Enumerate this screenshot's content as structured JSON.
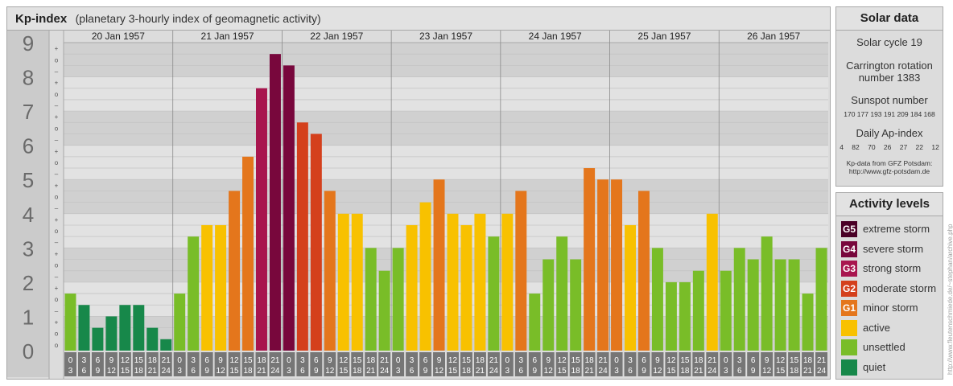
{
  "header": {
    "title": "Kp-index",
    "subtitle": "(planetary 3-hourly index of geomagnetic activity)"
  },
  "chart_data": {
    "type": "bar",
    "y_major_ticks": [
      "0",
      "1",
      "2",
      "3",
      "4",
      "5",
      "6",
      "7",
      "8",
      "9"
    ],
    "y_minor_marks": [
      "+",
      "o",
      "–"
    ],
    "ylim": [
      0,
      9
    ],
    "days": [
      "20 Jan 1957",
      "21 Jan 1957",
      "22 Jan 1957",
      "23 Jan 1957",
      "24 Jan 1957",
      "25 Jan 1957",
      "26 Jan 1957"
    ],
    "interval_starts": [
      "0",
      "3",
      "6",
      "9",
      "12",
      "15",
      "18",
      "21"
    ],
    "interval_ends": [
      "3",
      "6",
      "9",
      "12",
      "15",
      "18",
      "21",
      "24"
    ],
    "values": [
      1.667,
      1.333,
      0.667,
      1.0,
      1.333,
      1.333,
      0.667,
      0.333,
      1.667,
      3.333,
      3.667,
      3.667,
      4.667,
      5.667,
      7.667,
      8.667,
      8.333,
      6.667,
      6.333,
      4.667,
      4.0,
      4.0,
      3.0,
      2.333,
      3.0,
      3.667,
      4.333,
      5.0,
      4.0,
      3.667,
      4.0,
      3.333,
      4.0,
      4.667,
      1.667,
      2.667,
      3.333,
      2.667,
      5.333,
      5.0,
      5.0,
      3.667,
      4.667,
      3.0,
      2.0,
      2.0,
      2.333,
      4.0,
      2.333,
      3.0,
      2.667,
      3.333,
      2.667,
      2.667,
      1.667,
      3.0
    ],
    "colors": {
      "quiet": "#17884a",
      "unsettled": "#79bd28",
      "active": "#f8c100",
      "minor": "#e4761c",
      "moderate": "#d4401c",
      "strong": "#a8154e",
      "severe": "#78073c",
      "extreme": "#4a0026"
    }
  },
  "solar": {
    "title": "Solar data",
    "cycle": "Solar cycle 19",
    "carrington_1": "Carrington rotation",
    "carrington_2": "number 1383",
    "sunspot_label": "Sunspot number",
    "sunspot_values": "170 177 193 191 209 184 168",
    "ap_label": "Daily Ap-index",
    "ap_values": "4 82 70 26 27 22 12",
    "source_1": "Kp-data from GFZ Potsdam:",
    "source_2": "http://www.gfz-potsdam.de"
  },
  "activity": {
    "title": "Activity levels",
    "levels": [
      {
        "code": "G5",
        "label": "extreme storm",
        "color": "#4a0026"
      },
      {
        "code": "G4",
        "label": "severe storm",
        "color": "#78073c"
      },
      {
        "code": "G3",
        "label": "strong storm",
        "color": "#a8154e"
      },
      {
        "code": "G2",
        "label": "moderate storm",
        "color": "#d4401c"
      },
      {
        "code": "G1",
        "label": "minor storm",
        "color": "#e4761c"
      },
      {
        "code": "",
        "label": "active",
        "color": "#f8c100"
      },
      {
        "code": "",
        "label": "unsettled",
        "color": "#79bd28"
      },
      {
        "code": "",
        "label": "quiet",
        "color": "#17884a"
      }
    ]
  },
  "watermark": "http://www.fleutenschmiede.de/~stephan/archive.php"
}
